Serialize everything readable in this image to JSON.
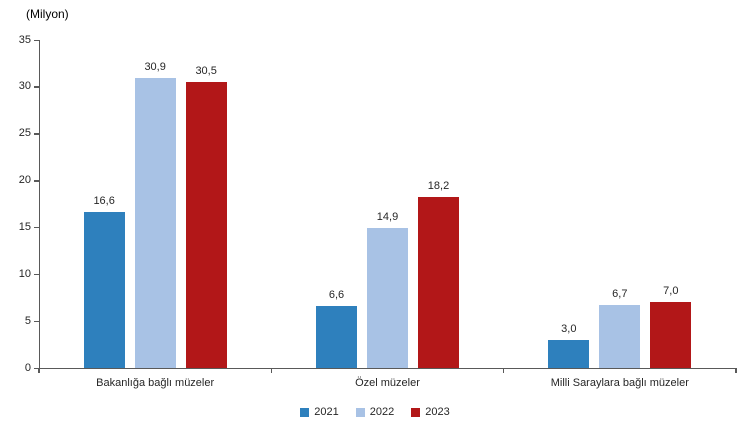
{
  "chart_data": {
    "type": "bar",
    "title": "",
    "ylabel": "(Milyon)",
    "xlabel": "",
    "ylim": [
      0,
      35
    ],
    "yticks": [
      0,
      5,
      10,
      15,
      20,
      25,
      30,
      35
    ],
    "grid": false,
    "legend_position": "bottom",
    "decimal_separator": ",",
    "categories": [
      "Bakanlığa bağlı müzeler",
      "Özel müzeler",
      "Milli Saraylara bağlı müzeler"
    ],
    "series": [
      {
        "name": "2021",
        "color": "#2E80BD",
        "values": [
          16.6,
          6.6,
          3.0
        ],
        "labels": [
          "16,6",
          "6,6",
          "3,0"
        ]
      },
      {
        "name": "2022",
        "color": "#A8C2E5",
        "values": [
          30.9,
          14.9,
          6.7
        ],
        "labels": [
          "30,9",
          "14,9",
          "6,7"
        ]
      },
      {
        "name": "2023",
        "color": "#B21718",
        "values": [
          30.5,
          18.2,
          7.0
        ],
        "labels": [
          "30,5",
          "18,2",
          "7,0"
        ]
      }
    ],
    "axis_color": "#595959",
    "text_color": "#262626"
  }
}
